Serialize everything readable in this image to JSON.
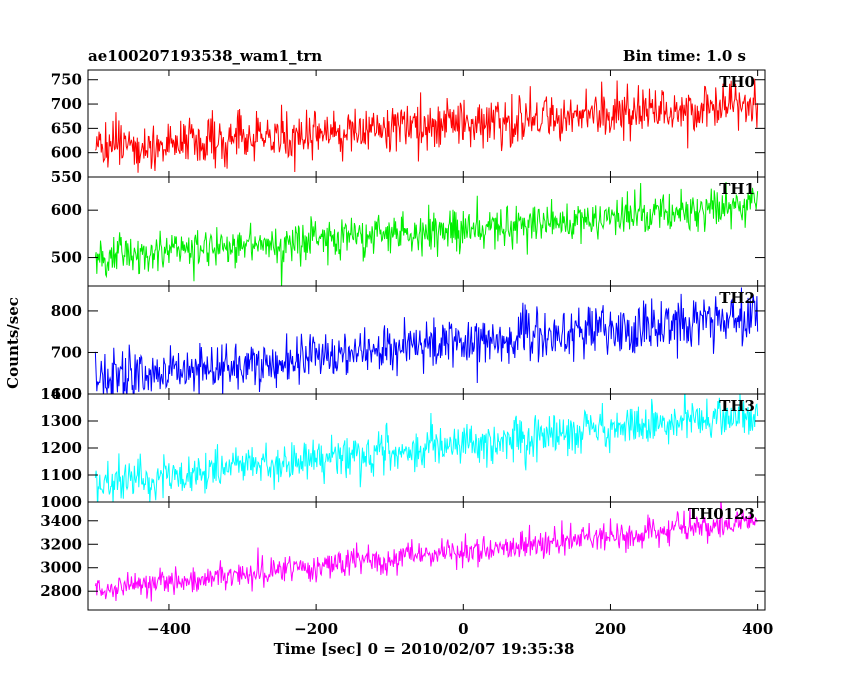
{
  "chart_data": {
    "type": "line",
    "title": "ae100207193538_wam1_trn",
    "subtitle": "Bin time: 1.0 s",
    "xlabel": "Time [sec] 0 = 2010/02/07 19:35:38",
    "ylabel": "Counts/sec",
    "xlim": [
      -510,
      410
    ],
    "data_range": [
      -500,
      400
    ],
    "x_ticks": [
      -400,
      -200,
      0,
      200,
      400
    ],
    "grid": false,
    "panels": [
      {
        "name": "TH0",
        "color": "#ff0000",
        "ylim": [
          550,
          770
        ],
        "y_ticks": [
          550,
          600,
          650,
          700,
          750
        ],
        "trend": {
          "x": [
            -500,
            400
          ],
          "y": [
            610,
            700
          ]
        },
        "noise_sd": 25
      },
      {
        "name": "TH1",
        "color": "#00ee00",
        "ylim": [
          440,
          670
        ],
        "y_ticks": [
          500,
          600
        ],
        "trend": {
          "x": [
            -500,
            400
          ],
          "y": [
            500,
            610
          ]
        },
        "noise_sd": 22
      },
      {
        "name": "TH2",
        "color": "#0000ff",
        "ylim": [
          600,
          860
        ],
        "y_ticks": [
          600,
          700,
          800
        ],
        "trend": {
          "x": [
            -500,
            400
          ],
          "y": [
            635,
            790
          ]
        },
        "noise_sd": 30
      },
      {
        "name": "TH3",
        "color": "#00ffff",
        "ylim": [
          1000,
          1400
        ],
        "y_ticks": [
          1000,
          1100,
          1200,
          1300,
          1400
        ],
        "trend": {
          "x": [
            -500,
            400
          ],
          "y": [
            1070,
            1330
          ]
        },
        "noise_sd": 40
      },
      {
        "name": "TH0123",
        "color": "#ff00ff",
        "ylim": [
          2640,
          3560
        ],
        "y_ticks": [
          2800,
          3000,
          3200,
          3400
        ],
        "trend": {
          "x": [
            -500,
            400
          ],
          "y": [
            2820,
            3400
          ]
        },
        "noise_sd": 60
      }
    ]
  }
}
